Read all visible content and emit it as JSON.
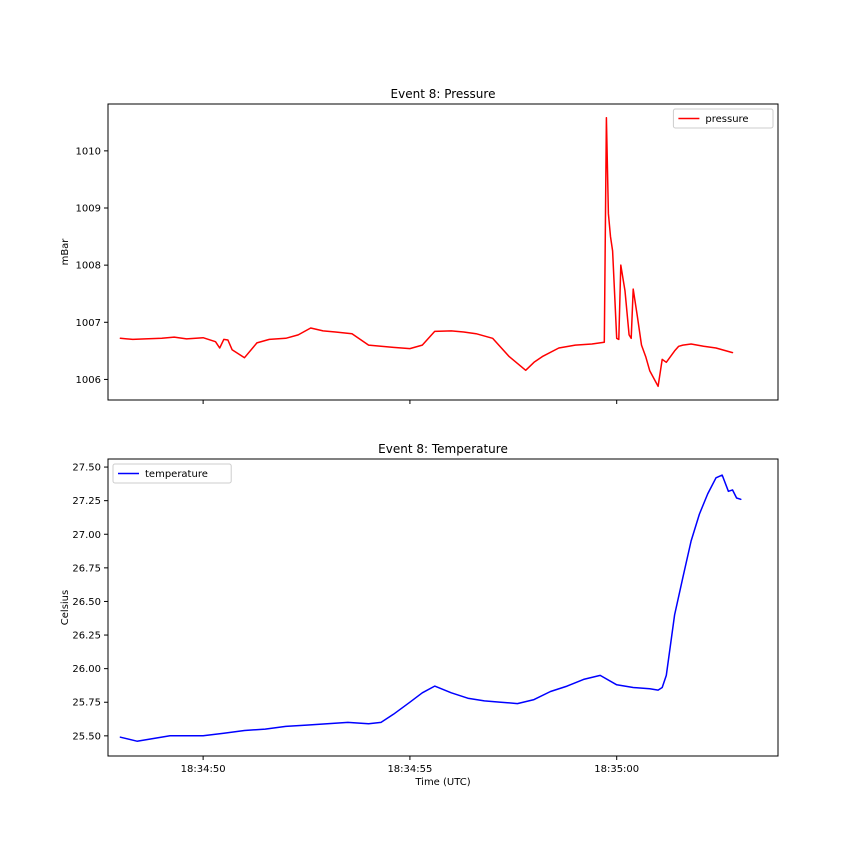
{
  "chart_data": [
    {
      "type": "line",
      "title": "Event 8: Pressure",
      "xlabel": "",
      "ylabel": "mBar",
      "xlim": [
        "18:34:47.7",
        "18:35:03.9"
      ],
      "ylim": [
        1005.64,
        1010.82
      ],
      "y_ticks": [
        1006,
        1007,
        1008,
        1009,
        1010
      ],
      "x_ticks": [
        "18:34:50",
        "18:34:55",
        "18:35:00"
      ],
      "x_tick_labels_shown": false,
      "legend": "upper right",
      "series": [
        {
          "name": "pressure",
          "color": "#ff0000",
          "x": [
            "18:34:48.0",
            "18:34:48.3",
            "18:34:48.6",
            "18:34:49.0",
            "18:34:49.3",
            "18:34:49.6",
            "18:34:50.0",
            "18:34:50.3",
            "18:34:50.4",
            "18:34:50.5",
            "18:34:50.6",
            "18:34:50.7",
            "18:34:51.0",
            "18:34:51.3",
            "18:34:51.6",
            "18:34:52.0",
            "18:34:52.3",
            "18:34:52.6",
            "18:34:52.9",
            "18:34:53.2",
            "18:34:53.6",
            "18:34:54.0",
            "18:34:54.3",
            "18:34:54.6",
            "18:34:55.0",
            "18:34:55.3",
            "18:34:55.6",
            "18:34:56.0",
            "18:34:56.3",
            "18:34:56.6",
            "18:34:57.0",
            "18:34:57.4",
            "18:34:57.8",
            "18:34:58.0",
            "18:34:58.2",
            "18:34:58.6",
            "18:34:59.0",
            "18:34:59.4",
            "18:34:59.7",
            "18:34:59.75",
            "18:34:59.8",
            "18:34:59.85",
            "18:34:59.9",
            "18:35:00.0",
            "18:35:00.05",
            "18:35:00.1",
            "18:35:00.2",
            "18:35:00.3",
            "18:35:00.35",
            "18:35:00.4",
            "18:35:00.5",
            "18:35:00.6",
            "18:35:00.7",
            "18:35:00.8",
            "18:35:01.0",
            "18:35:01.1",
            "18:35:01.2",
            "18:35:01.4",
            "18:35:01.5",
            "18:35:01.6",
            "18:35:01.8",
            "18:35:02.1",
            "18:35:02.4",
            "18:35:02.8"
          ],
          "y": [
            1006.72,
            1006.7,
            1006.71,
            1006.72,
            1006.74,
            1006.71,
            1006.73,
            1006.66,
            1006.55,
            1006.7,
            1006.69,
            1006.52,
            1006.38,
            1006.64,
            1006.7,
            1006.72,
            1006.78,
            1006.9,
            1006.85,
            1006.83,
            1006.8,
            1006.6,
            1006.58,
            1006.56,
            1006.54,
            1006.6,
            1006.84,
            1006.85,
            1006.83,
            1006.8,
            1006.72,
            1006.4,
            1006.16,
            1006.3,
            1006.4,
            1006.55,
            1006.6,
            1006.62,
            1006.65,
            1010.58,
            1008.9,
            1008.5,
            1008.25,
            1006.72,
            1006.7,
            1008.0,
            1007.55,
            1006.78,
            1006.72,
            1007.58,
            1007.1,
            1006.6,
            1006.4,
            1006.15,
            1005.88,
            1006.35,
            1006.3,
            1006.5,
            1006.58,
            1006.6,
            1006.62,
            1006.58,
            1006.55,
            1006.47
          ]
        }
      ]
    },
    {
      "type": "line",
      "title": "Event 8: Temperature",
      "xlabel": "Time (UTC)",
      "ylabel": "Celsius",
      "xlim": [
        "18:34:47.7",
        "18:35:03.9"
      ],
      "ylim": [
        25.35,
        27.56
      ],
      "y_ticks": [
        25.5,
        25.75,
        26.0,
        26.25,
        26.5,
        26.75,
        27.0,
        27.25,
        27.5
      ],
      "y_tick_labels": [
        "25.50",
        "25.75",
        "26.00",
        "26.25",
        "26.50",
        "26.75",
        "27.00",
        "27.25",
        "27.50"
      ],
      "x_ticks": [
        "18:34:50",
        "18:34:55",
        "18:35:00"
      ],
      "x_tick_labels": [
        "18:34:50",
        "18:34:55",
        "18:35:00"
      ],
      "legend": "upper left",
      "series": [
        {
          "name": "temperature",
          "color": "#0000ff",
          "x": [
            "18:34:48.0",
            "18:34:48.4",
            "18:34:48.8",
            "18:34:49.2",
            "18:34:49.6",
            "18:34:50.0",
            "18:34:50.5",
            "18:34:51.0",
            "18:34:51.5",
            "18:34:52.0",
            "18:34:52.5",
            "18:34:53.0",
            "18:34:53.5",
            "18:34:54.0",
            "18:34:54.3",
            "18:34:54.6",
            "18:34:55.0",
            "18:34:55.3",
            "18:34:55.6",
            "18:34:56.0",
            "18:34:56.4",
            "18:34:56.8",
            "18:34:57.2",
            "18:34:57.6",
            "18:34:58.0",
            "18:34:58.4",
            "18:34:58.8",
            "18:34:59.2",
            "18:34:59.6",
            "18:35:00.0",
            "18:35:00.4",
            "18:35:00.8",
            "18:35:01.0",
            "18:35:01.1",
            "18:35:01.2",
            "18:35:01.4",
            "18:35:01.6",
            "18:35:01.8",
            "18:35:02.0",
            "18:35:02.2",
            "18:35:02.4",
            "18:35:02.55",
            "18:35:02.7",
            "18:35:02.8",
            "18:35:02.9",
            "18:35:03.0"
          ],
          "y": [
            25.49,
            25.46,
            25.48,
            25.5,
            25.5,
            25.5,
            25.52,
            25.54,
            25.55,
            25.57,
            25.58,
            25.59,
            25.6,
            25.59,
            25.6,
            25.66,
            25.75,
            25.82,
            25.87,
            25.82,
            25.78,
            25.76,
            25.75,
            25.74,
            25.77,
            25.83,
            25.87,
            25.92,
            25.95,
            25.88,
            25.86,
            25.85,
            25.84,
            25.86,
            25.95,
            26.4,
            26.68,
            26.95,
            27.15,
            27.3,
            27.42,
            27.44,
            27.32,
            27.33,
            27.27,
            27.26
          ]
        }
      ]
    }
  ]
}
